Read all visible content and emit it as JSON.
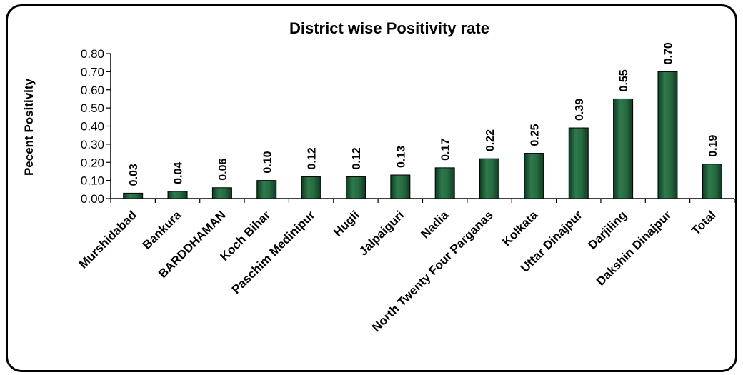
{
  "chart_data": {
    "type": "bar",
    "title": "District wise Positivity rate",
    "ylabel": "Pecent Positivity",
    "xlabel": "",
    "ylim": [
      0,
      0.8
    ],
    "yticks": [
      "0.00",
      "0.10",
      "0.20",
      "0.30",
      "0.40",
      "0.50",
      "0.60",
      "0.70",
      "0.80"
    ],
    "grid": false,
    "legend": "none",
    "bar_color": "#1f5a36",
    "categories": [
      "Murshidabad",
      "Bankura",
      "BARDDHAMAN",
      "Koch Bihar",
      "Paschim Medinipur",
      "Hugli",
      "Jalpaiguri",
      "Nadia",
      "North Twenty Four Parganas",
      "Kolkata",
      "Uttar Dinajpur",
      "Darjiling",
      "Dakshin Dinajpur",
      "Total"
    ],
    "values": [
      0.03,
      0.04,
      0.06,
      0.1,
      0.12,
      0.12,
      0.13,
      0.17,
      0.22,
      0.25,
      0.39,
      0.55,
      0.7,
      0.19
    ],
    "value_labels": [
      "0.03",
      "0.04",
      "0.06",
      "0.10",
      "0.12",
      "0.12",
      "0.13",
      "0.17",
      "0.22",
      "0.25",
      "0.39",
      "0.55",
      "0.70",
      "0.19"
    ]
  }
}
